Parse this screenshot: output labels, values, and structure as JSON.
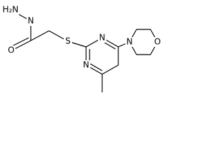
{
  "atoms": [
    {
      "label": "H₂N"
    },
    {
      "label": "N"
    },
    {
      "label": "O"
    },
    {
      "label": "S"
    },
    {
      "label": "N"
    },
    {
      "label": "N"
    },
    {
      "label": "N"
    },
    {
      "label": "O"
    }
  ]
}
